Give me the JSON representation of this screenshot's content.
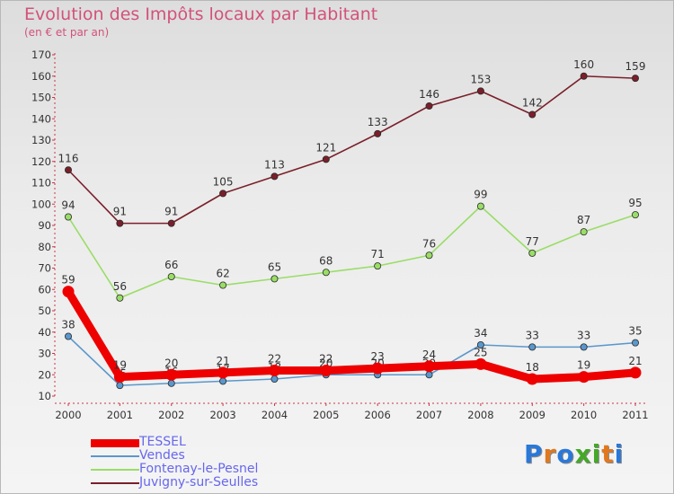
{
  "title": "Evolution des Impôts locaux par Habitant",
  "subtitle": "(en € et par an)",
  "brand": {
    "text": "Proxiti",
    "letter_colors": [
      "#2a78d8",
      "#e07820",
      "#2a78d8",
      "#44a828",
      "#44a828",
      "#e07820",
      "#2a78d8"
    ]
  },
  "chart_data": {
    "type": "line",
    "title": "Evolution des Impôts locaux par Habitant",
    "subtitle": "(en € et par an)",
    "xlabel": "",
    "ylabel": "",
    "ylim": [
      10,
      170
    ],
    "ytick_step": 10,
    "grid": false,
    "legend_position": "bottom-left",
    "categories": [
      "2000",
      "2001",
      "2002",
      "2003",
      "2004",
      "2005",
      "2006",
      "2007",
      "2008",
      "2009",
      "2010",
      "2011"
    ],
    "series": [
      {
        "name": "Juvigny-sur-Seulles",
        "color": "#7a1f2a",
        "thick": false,
        "values": [
          116,
          91,
          91,
          105,
          113,
          121,
          133,
          146,
          153,
          142,
          160,
          159
        ]
      },
      {
        "name": "Fontenay-le-Pesnel",
        "color": "#99dd66",
        "thick": false,
        "values": [
          94,
          56,
          66,
          62,
          65,
          68,
          71,
          76,
          99,
          77,
          87,
          95
        ]
      },
      {
        "name": "Vendes",
        "color": "#5a97cc",
        "thick": false,
        "values": [
          38,
          15,
          16,
          17,
          18,
          20,
          20,
          20,
          34,
          33,
          33,
          35
        ]
      },
      {
        "name": "TESSEL",
        "color": "#ee0000",
        "thick": true,
        "values": [
          59,
          19,
          20,
          21,
          22,
          22,
          23,
          24,
          25,
          18,
          19,
          21
        ]
      }
    ],
    "legend_order": [
      "TESSEL",
      "Vendes",
      "Fontenay-le-Pesnel",
      "Juvigny-sur-Seulles"
    ]
  }
}
